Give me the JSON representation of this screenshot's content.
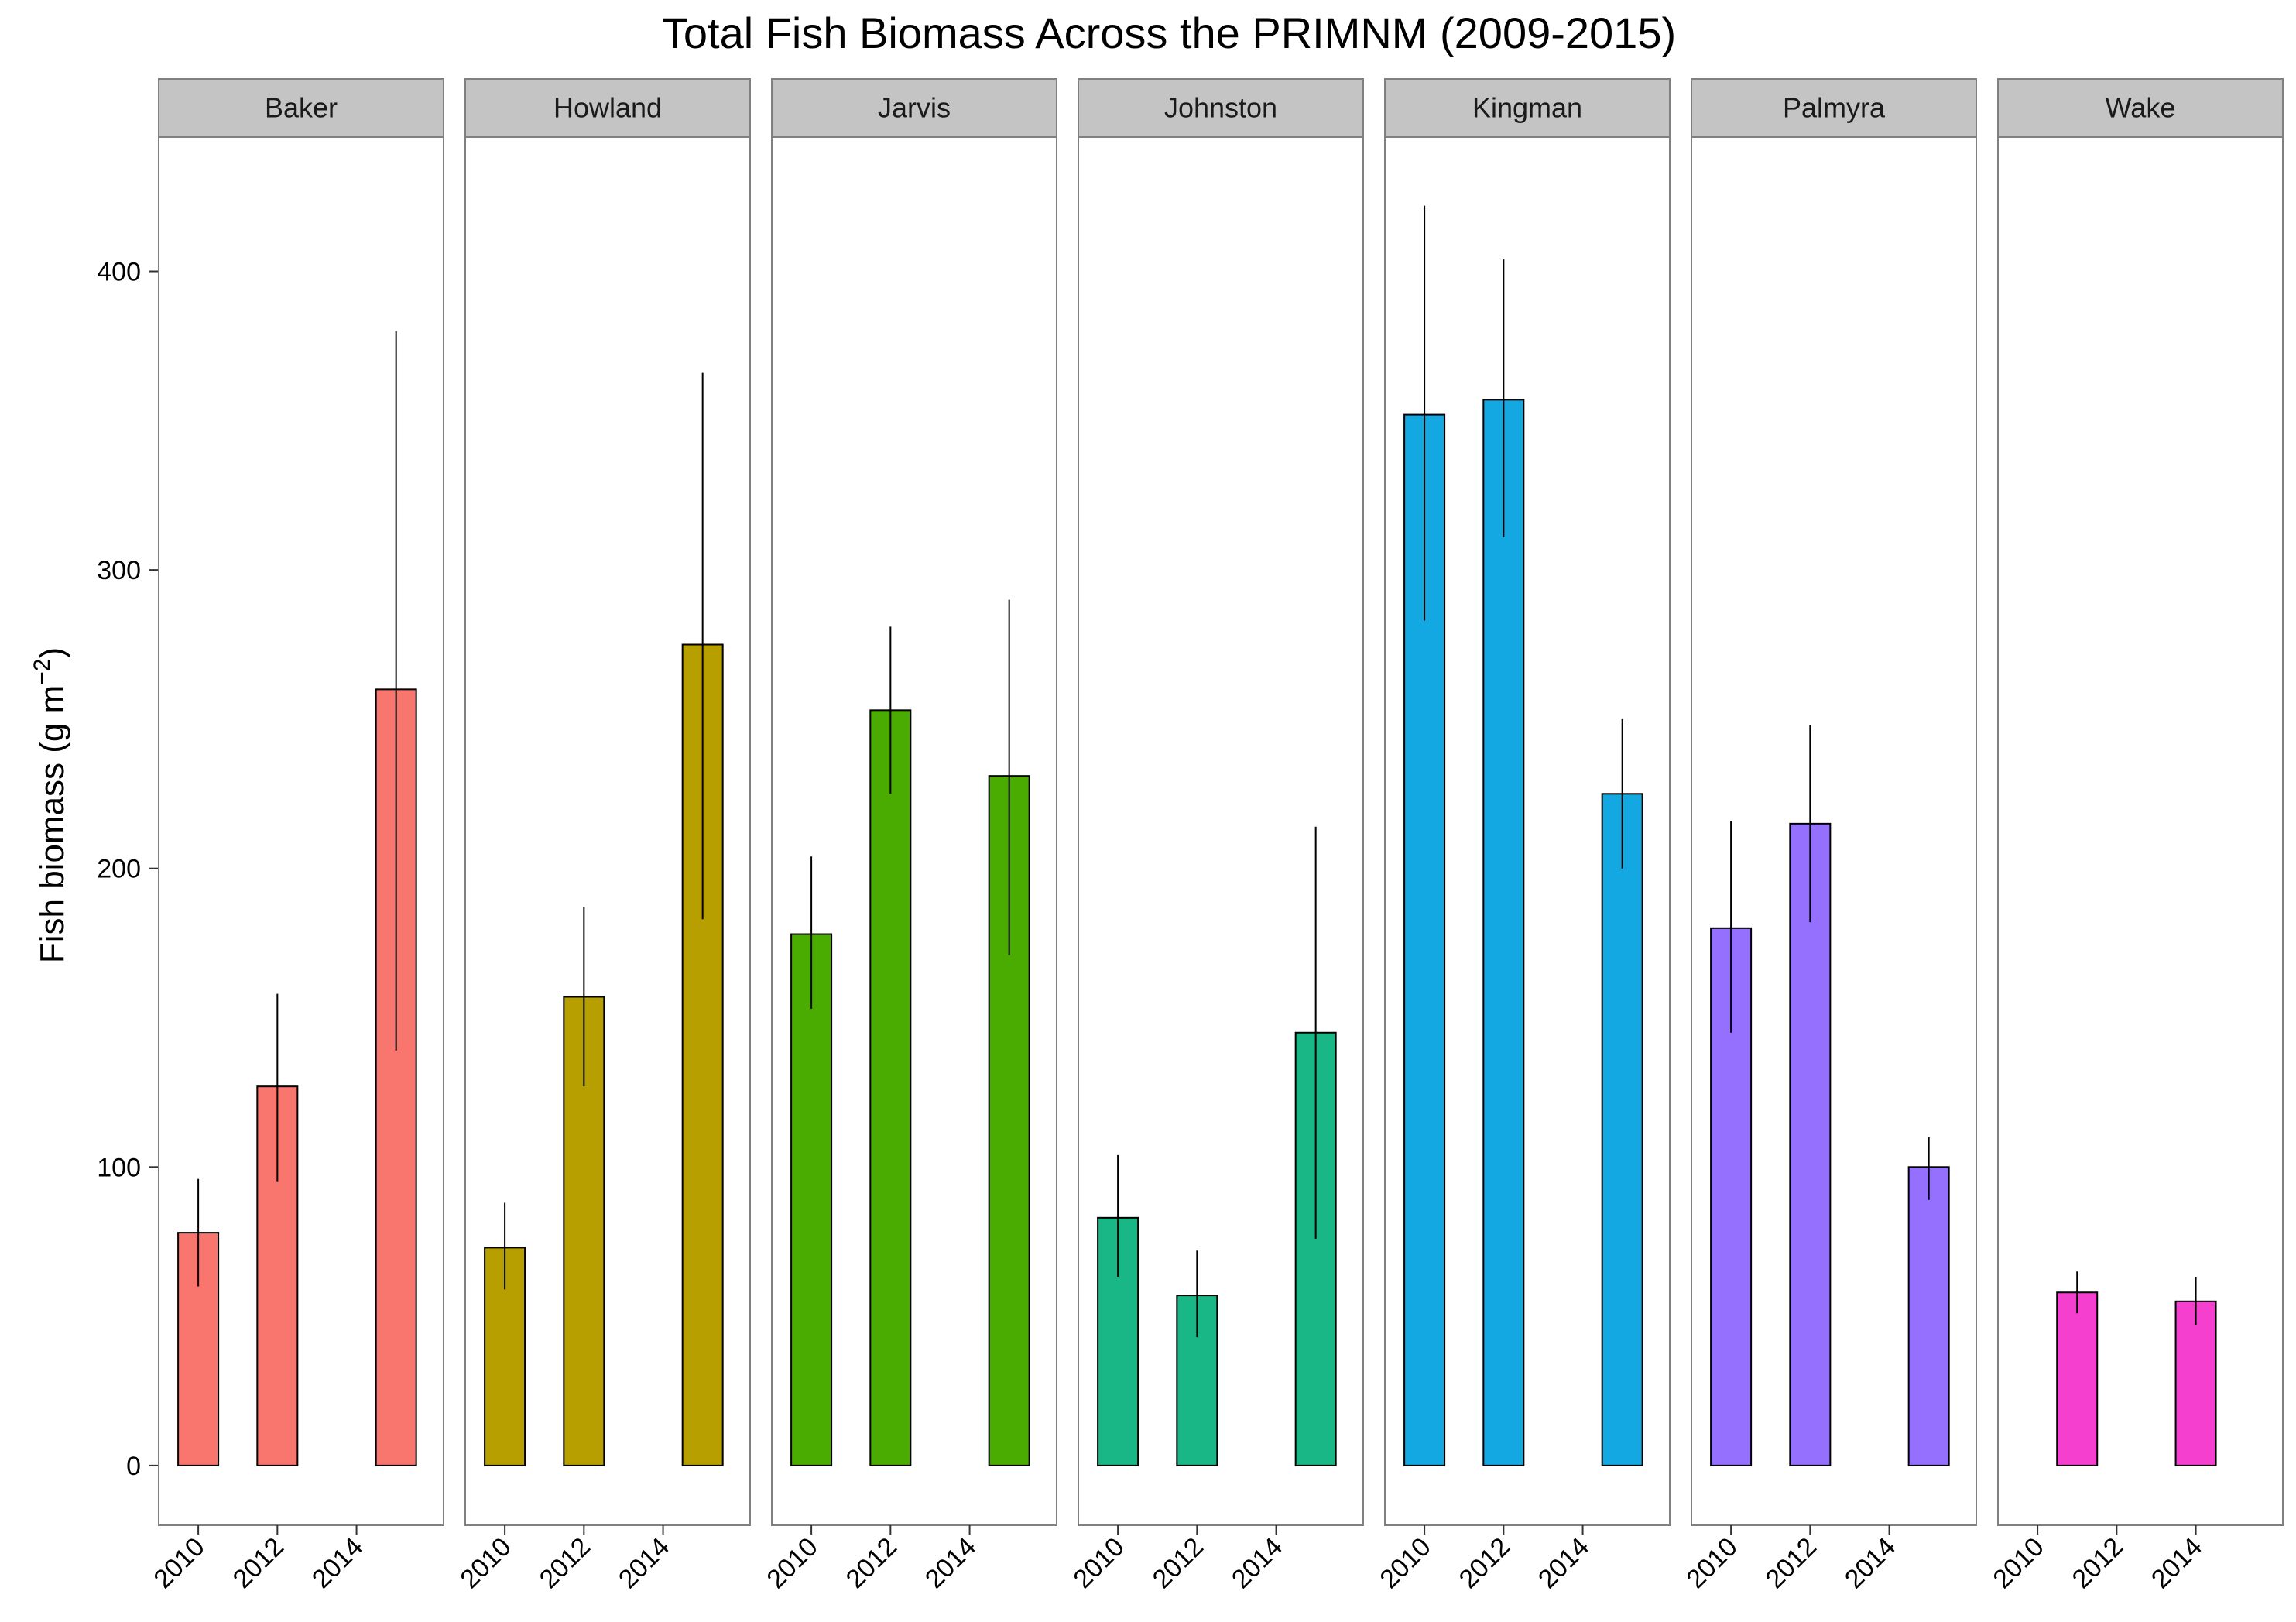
{
  "chart_data": {
    "type": "bar",
    "title": "Total Fish Biomass Across the PRIMNM (2009-2015)",
    "ylabel": "Fish biomass (g m",
    "ylabel_sup": "−2",
    "ylabel_close": ")",
    "xlabel": "",
    "ylim": [
      -20,
      445
    ],
    "xlim": [
      2009.0,
      2016.2
    ],
    "yticks": [
      0,
      100,
      200,
      300,
      400
    ],
    "xticks": [
      2010,
      2012,
      2014
    ],
    "grid": false,
    "legend": "none",
    "facets": [
      {
        "name": "Baker",
        "color": "#F8766D",
        "bars": [
          {
            "year": 2010,
            "value": 78,
            "low": 60,
            "high": 96
          },
          {
            "year": 2012,
            "value": 127,
            "low": 95,
            "high": 158
          },
          {
            "year": 2015,
            "value": 260,
            "low": 139,
            "high": 380
          }
        ]
      },
      {
        "name": "Howland",
        "color": "#B79F00",
        "bars": [
          {
            "year": 2010,
            "value": 73,
            "low": 59,
            "high": 88
          },
          {
            "year": 2012,
            "value": 157,
            "low": 127,
            "high": 187
          },
          {
            "year": 2015,
            "value": 275,
            "low": 183,
            "high": 366
          }
        ]
      },
      {
        "name": "Jarvis",
        "color": "#4AAB00",
        "bars": [
          {
            "year": 2010,
            "value": 178,
            "low": 153,
            "high": 204
          },
          {
            "year": 2012,
            "value": 253,
            "low": 225,
            "high": 281
          },
          {
            "year": 2015,
            "value": 231,
            "low": 171,
            "high": 290
          }
        ]
      },
      {
        "name": "Johnston",
        "color": "#18B785",
        "bars": [
          {
            "year": 2010,
            "value": 83,
            "low": 63,
            "high": 104
          },
          {
            "year": 2012,
            "value": 57,
            "low": 43,
            "high": 72
          },
          {
            "year": 2015,
            "value": 145,
            "low": 76,
            "high": 214
          }
        ]
      },
      {
        "name": "Kingman",
        "color": "#14A8E3",
        "bars": [
          {
            "year": 2010,
            "value": 352,
            "low": 283,
            "high": 422
          },
          {
            "year": 2012,
            "value": 357,
            "low": 311,
            "high": 404
          },
          {
            "year": 2015,
            "value": 225,
            "low": 200,
            "high": 250
          }
        ]
      },
      {
        "name": "Palmyra",
        "color": "#9570FF",
        "bars": [
          {
            "year": 2010,
            "value": 180,
            "low": 145,
            "high": 216
          },
          {
            "year": 2012,
            "value": 215,
            "low": 182,
            "high": 248
          },
          {
            "year": 2015,
            "value": 100,
            "low": 89,
            "high": 110
          }
        ]
      },
      {
        "name": "Wake",
        "color": "#F43FCF",
        "bars": [
          {
            "year": 2011,
            "value": 58,
            "low": 51,
            "high": 65
          },
          {
            "year": 2014,
            "value": 55,
            "low": 47,
            "high": 63
          }
        ]
      }
    ]
  }
}
